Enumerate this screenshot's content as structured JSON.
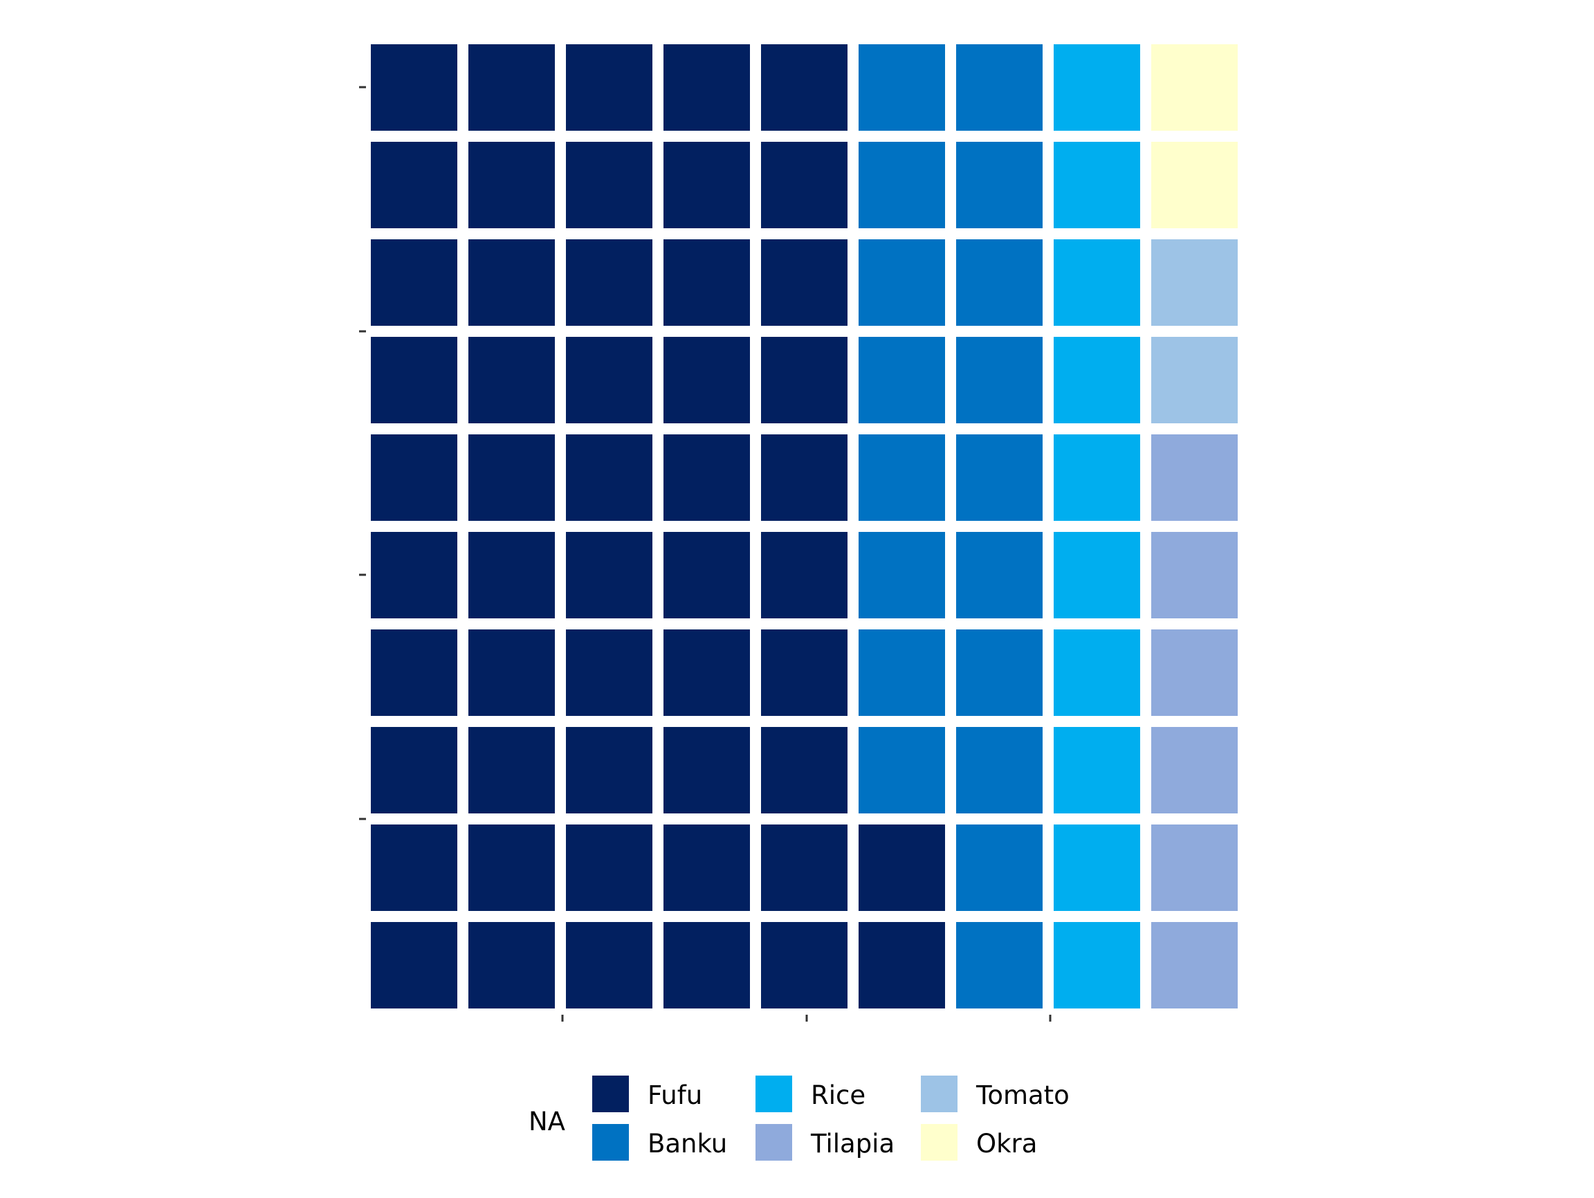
{
  "chart_data": {
    "type": "waffle",
    "rows": 10,
    "columns": 9,
    "fill_order": "column-wise, bottom-to-top, left-to-right",
    "categories": [
      "Fufu",
      "Banku",
      "Rice",
      "Tilapia",
      "Tomato",
      "Okra"
    ],
    "values": [
      52,
      18,
      10,
      6,
      2,
      2
    ],
    "colors": {
      "Fufu": "#022060",
      "Banku": "#0072C2",
      "Rice": "#00AEEF",
      "Tilapia": "#8FAADC",
      "Tomato": "#9DC3E6",
      "Okra": "#FFFFCC"
    },
    "legend": {
      "title": "NA",
      "placement": "bottom",
      "columns": [
        [
          "Fufu",
          "Banku"
        ],
        [
          "Rice",
          "Tilapia"
        ],
        [
          "Tomato",
          "Okra"
        ]
      ]
    },
    "x_ticks": 3,
    "y_ticks": 4,
    "grid": false
  }
}
